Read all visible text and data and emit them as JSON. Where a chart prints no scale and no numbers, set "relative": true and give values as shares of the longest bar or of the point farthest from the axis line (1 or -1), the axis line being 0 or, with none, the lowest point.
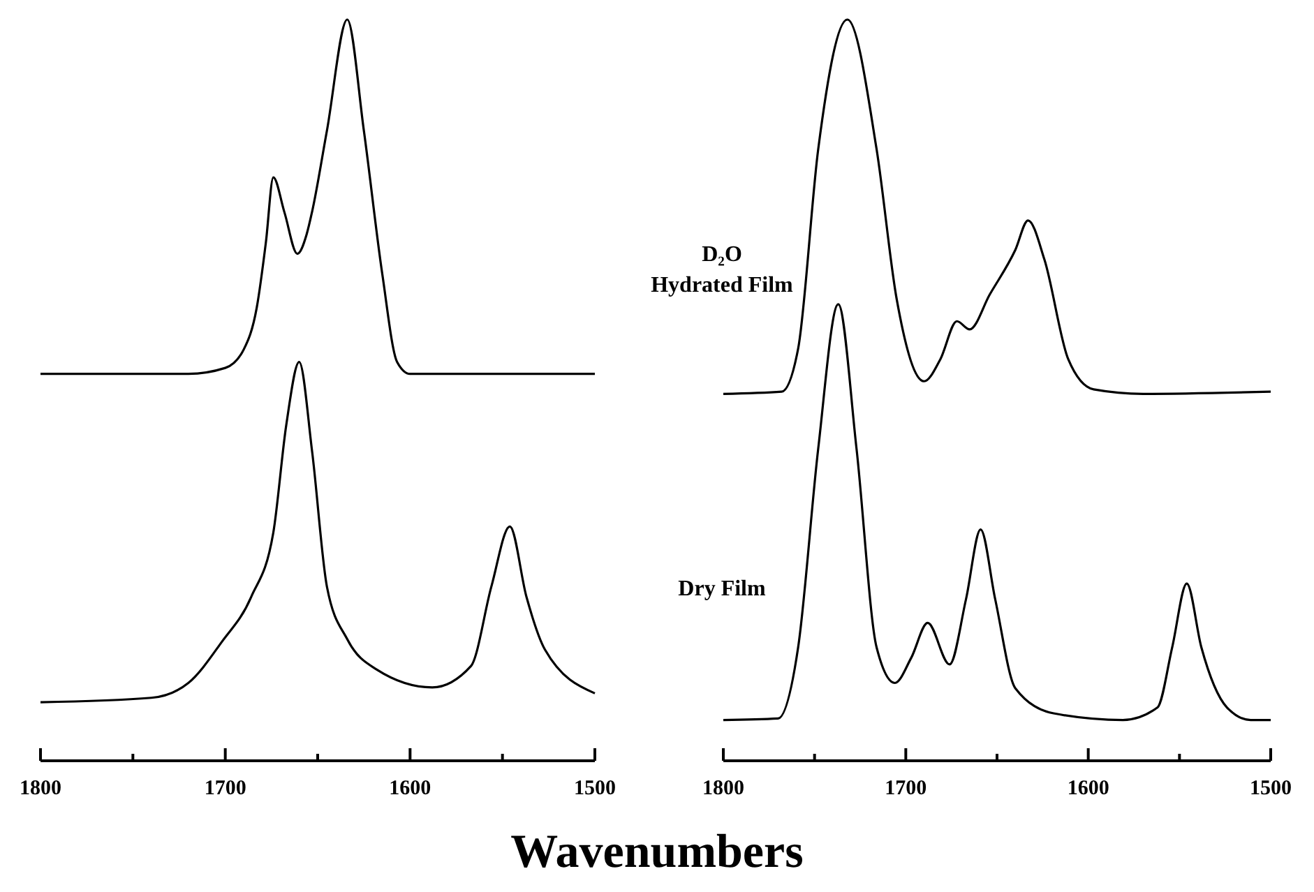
{
  "chart_data": [
    {
      "type": "line",
      "relative": true,
      "xlim": [
        1800,
        1500
      ],
      "xticks": [
        1800,
        {
          "value": 1750,
          "label": null
        },
        1700,
        {
          "value": 1650,
          "label": null
        },
        1600,
        {
          "value": 1550,
          "label": null
        },
        1500
      ],
      "tick_labels": "x",
      "marker": "none",
      "line_style": "solid",
      "annotations": [
        "D₂O\nHydrated Film",
        "Dry Film"
      ],
      "series": [
        {
          "color": "#000000",
          "x": [
            1800,
            1720,
            1700,
            1690,
            1683,
            1678,
            1674,
            1668,
            1661,
            1656,
            1653,
            1645,
            1634,
            1625,
            1615,
            1607,
            1600,
            1500
          ],
          "values": [
            0.522,
            0.522,
            0.53,
            0.555,
            0.611,
            0.7,
            0.787,
            0.74,
            0.684,
            0.71,
            0.741,
            0.85,
            1.0,
            0.85,
            0.656,
            0.538,
            0.522,
            0.522
          ]
        },
        {
          "color": "#000000",
          "x": [
            1800,
            1740,
            1720,
            1702,
            1686,
            1674,
            1667,
            1660,
            1653,
            1645,
            1634,
            1618,
            1588,
            1567,
            1556,
            1546,
            1537,
            1527,
            1500
          ],
          "values": [
            0.079,
            0.085,
            0.105,
            0.16,
            0.221,
            0.308,
            0.453,
            0.538,
            0.417,
            0.235,
            0.164,
            0.123,
            0.099,
            0.128,
            0.235,
            0.316,
            0.221,
            0.15,
            0.091
          ]
        }
      ]
    },
    {
      "type": "line",
      "relative": true,
      "xlim": [
        1800,
        1500
      ],
      "xticks": [
        1800,
        {
          "value": 1750,
          "label": null
        },
        1700,
        {
          "value": 1650,
          "label": null
        },
        1600,
        {
          "value": 1550,
          "label": null
        },
        1500
      ],
      "tick_labels": "x",
      "marker": "none",
      "line_style": "solid",
      "xlabel": "Wavenumbers",
      "series": [
        {
          "color": "#000000",
          "x": [
            1800,
            1768,
            1759,
            1748,
            1732,
            1716,
            1705,
            1690,
            1681,
            1672,
            1665,
            1654,
            1640,
            1633,
            1624,
            1611,
            1597,
            1570,
            1500
          ],
          "values": [
            0.495,
            0.498,
            0.556,
            0.825,
            1.0,
            0.825,
            0.623,
            0.512,
            0.542,
            0.593,
            0.582,
            0.629,
            0.689,
            0.729,
            0.676,
            0.542,
            0.501,
            0.495,
            0.498
          ]
        },
        {
          "color": "#000000",
          "x": [
            1800,
            1770,
            1759,
            1748,
            1737,
            1727,
            1716,
            1706,
            1697,
            1688,
            1676,
            1667,
            1659,
            1651,
            1640,
            1619,
            1581,
            1562,
            1554,
            1546,
            1538,
            1524,
            1511,
            1500
          ],
          "values": [
            0.055,
            0.057,
            0.153,
            0.421,
            0.616,
            0.421,
            0.153,
            0.105,
            0.139,
            0.186,
            0.13,
            0.218,
            0.312,
            0.218,
            0.098,
            0.064,
            0.055,
            0.072,
            0.153,
            0.239,
            0.153,
            0.072,
            0.055,
            0.055
          ]
        }
      ]
    }
  ]
}
